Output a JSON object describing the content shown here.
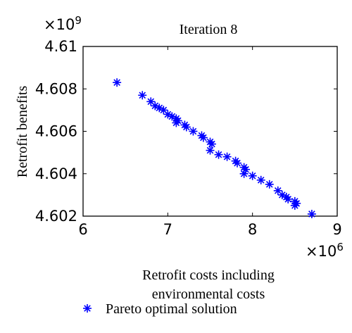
{
  "chart_data": {
    "type": "scatter",
    "title": "Iteration 8",
    "xlabel_line1": "Retrofit costs including",
    "xlabel_line2": "environmental costs",
    "ylabel": "Retrofit benefits",
    "x_multiplier": "×10",
    "x_exponent": "6",
    "y_multiplier": "×10",
    "y_exponent": "9",
    "xlim": [
      6,
      9
    ],
    "ylim": [
      4.602,
      4.61
    ],
    "xticks": [
      "6",
      "7",
      "8",
      "9"
    ],
    "yticks": [
      "4.602",
      "4.604",
      "4.606",
      "4.608",
      "4.61"
    ],
    "grid": false,
    "legend_position": "bottom",
    "marker_color": "#0000ff",
    "series": [
      {
        "name": "Pareto optimal solution",
        "marker": "asterisk",
        "x": [
          6.4,
          6.7,
          6.8,
          6.85,
          6.9,
          6.95,
          7.0,
          7.05,
          7.1,
          7.1,
          7.12,
          7.2,
          7.22,
          7.3,
          7.4,
          7.42,
          7.5,
          7.52,
          7.5,
          7.6,
          7.7,
          7.8,
          7.82,
          7.9,
          7.92,
          7.9,
          8.0,
          8.1,
          8.2,
          8.3,
          8.35,
          8.4,
          8.42,
          8.5,
          8.52,
          8.5,
          8.7
        ],
        "y": [
          4.6083,
          4.6077,
          4.6074,
          4.6072,
          4.6071,
          4.607,
          4.6068,
          4.6067,
          4.6066,
          4.6064,
          4.6065,
          4.6063,
          4.6062,
          4.606,
          4.6058,
          4.6057,
          4.6055,
          4.6054,
          4.6051,
          4.6049,
          4.6048,
          4.6046,
          4.6045,
          4.6043,
          4.6042,
          4.604,
          4.6039,
          4.6037,
          4.6035,
          4.6032,
          4.603,
          4.6029,
          4.6028,
          4.6027,
          4.6026,
          4.6025,
          4.6021
        ]
      }
    ]
  }
}
